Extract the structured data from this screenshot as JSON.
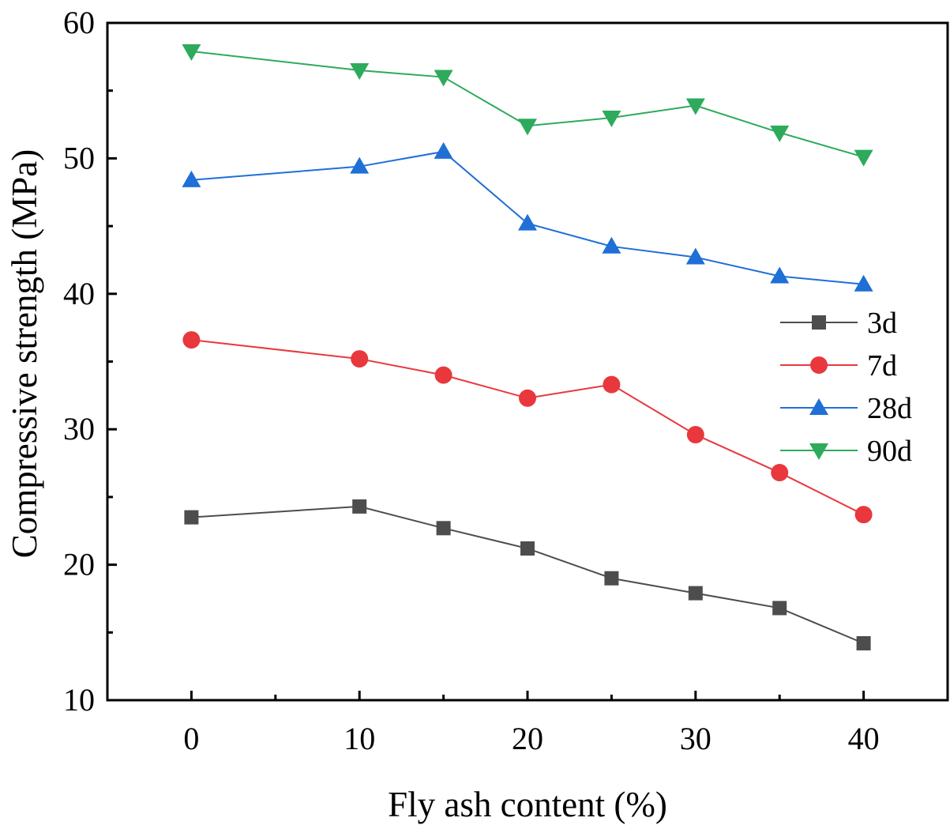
{
  "chart_data": {
    "type": "line",
    "title": "",
    "xlabel": "Fly ash content (%)",
    "ylabel": "Compressive strength (MPa)",
    "xlim": [
      -5,
      45
    ],
    "ylim": [
      10,
      60
    ],
    "xticks": [
      0,
      10,
      20,
      30,
      40
    ],
    "xtick_labels": [
      "0",
      "10",
      "20",
      "30",
      "40"
    ],
    "yticks": [
      10,
      20,
      30,
      40,
      50,
      60
    ],
    "ytick_labels": [
      "10",
      "20",
      "30",
      "40",
      "50",
      "60"
    ],
    "x": [
      0,
      10,
      15,
      20,
      25,
      30,
      35,
      40
    ],
    "legend_position": "right",
    "grid": false,
    "series": [
      {
        "name": "3d",
        "color": "#4d4d4d",
        "marker": "square",
        "values": [
          23.5,
          24.3,
          22.7,
          21.2,
          19.0,
          17.9,
          16.8,
          14.2
        ]
      },
      {
        "name": "7d",
        "color": "#e8383d",
        "marker": "circle",
        "values": [
          36.6,
          35.2,
          34.0,
          32.3,
          33.3,
          29.6,
          26.8,
          23.7
        ]
      },
      {
        "name": "28d",
        "color": "#1f6fd6",
        "marker": "triangle-up",
        "values": [
          48.4,
          49.4,
          50.5,
          45.2,
          43.5,
          42.7,
          41.3,
          40.7
        ]
      },
      {
        "name": "90d",
        "color": "#2eaa5c",
        "marker": "triangle-down",
        "values": [
          57.9,
          56.5,
          56.0,
          52.4,
          53.0,
          53.9,
          51.9,
          50.1
        ]
      }
    ]
  }
}
